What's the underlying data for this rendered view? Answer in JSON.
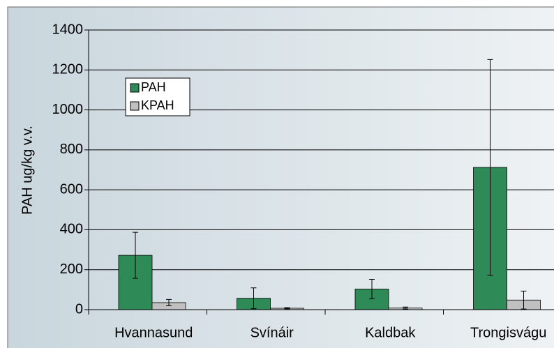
{
  "chart_data": {
    "type": "bar",
    "y_label": "PAH ug/kg v.v.",
    "categories": [
      "Hvannasund",
      "Svínáir",
      "Kaldbak",
      "Trongisvágu"
    ],
    "series": [
      {
        "name": "PAH",
        "color": "#2e8b57",
        "values": [
          272,
          57,
          103,
          712
        ],
        "errors": [
          115,
          52,
          49,
          540
        ]
      },
      {
        "name": "KPAH",
        "color": "#c0c0c0",
        "values": [
          35,
          7,
          8,
          48
        ],
        "errors": [
          16,
          3,
          5,
          45
        ]
      }
    ],
    "ylim": [
      0,
      1400
    ],
    "yticks": [
      0,
      200,
      400,
      600,
      800,
      1000,
      1200,
      1400
    ],
    "grid": true,
    "legend": "upper left"
  }
}
